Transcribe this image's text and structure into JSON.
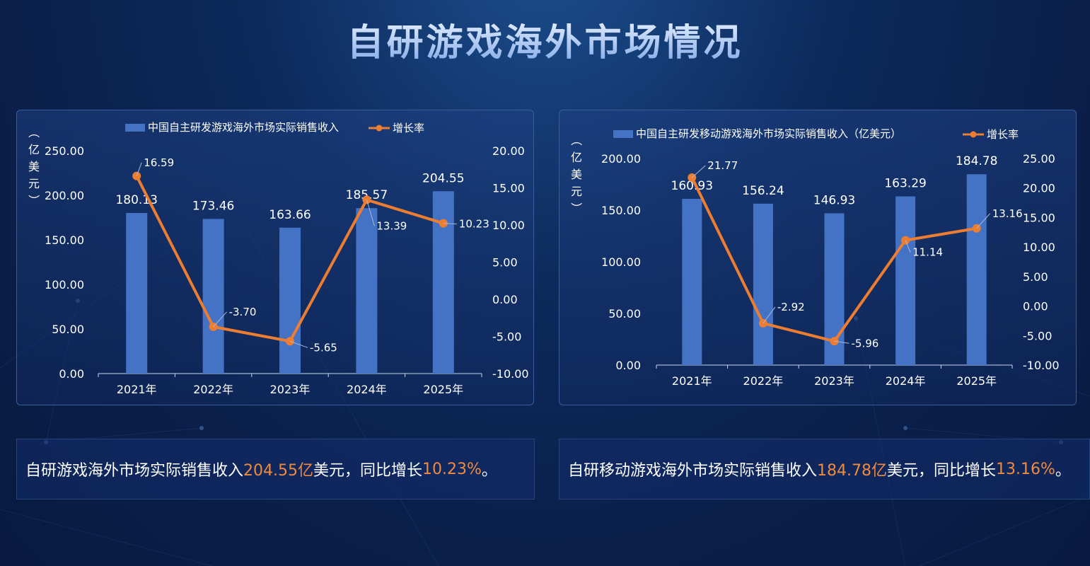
{
  "page": {
    "title": "自研游戏海外市场情况"
  },
  "colors": {
    "bar": "#4472c4",
    "line": "#ed7d31",
    "axis_text": "#ffffff",
    "highlight": "#f08a3c"
  },
  "chart_data": [
    {
      "type": "bar",
      "categories": [
        "2021年",
        "2022年",
        "2023年",
        "2024年",
        "2025年"
      ],
      "series": [
        {
          "name": "中国自主研发游戏海外市场实际销售收入",
          "type": "bar",
          "axis": "left",
          "values": [
            180.13,
            173.46,
            163.66,
            185.57,
            204.55
          ],
          "labels": [
            "180.13",
            "173.46",
            "163.66",
            "185.57",
            "204.55"
          ]
        },
        {
          "name": "增长率",
          "type": "line",
          "axis": "right",
          "values": [
            16.59,
            -3.7,
            -5.65,
            13.39,
            10.23
          ],
          "labels": [
            "16.59",
            "-3.70",
            "-5.65",
            "13.39",
            "10.23"
          ]
        }
      ],
      "ylabel": "（亿美元）",
      "ylim": [
        0,
        250
      ],
      "yticks": [
        "0.00",
        "50.00",
        "100.00",
        "150.00",
        "200.00",
        "250.00"
      ],
      "y2lim": [
        -10,
        20
      ],
      "y2ticks": [
        "-10.00",
        "-5.00",
        "0.00",
        "5.00",
        "10.00",
        "15.00",
        "20.00"
      ],
      "legend": "top",
      "grid": false
    },
    {
      "type": "bar",
      "categories": [
        "2021年",
        "2022年",
        "2023年",
        "2024年",
        "2025年"
      ],
      "series": [
        {
          "name": "中国自主研发移动游戏海外市场实际销售收入（亿美元）",
          "type": "bar",
          "axis": "left",
          "values": [
            160.93,
            156.24,
            146.93,
            163.29,
            184.78
          ],
          "labels": [
            "160.93",
            "156.24",
            "146.93",
            "163.29",
            "184.78"
          ]
        },
        {
          "name": "增长率",
          "type": "line",
          "axis": "right",
          "values": [
            21.77,
            -2.92,
            -5.96,
            11.14,
            13.16
          ],
          "labels": [
            "21.77",
            "-2.92",
            "-5.96",
            "11.14",
            "13.16"
          ]
        }
      ],
      "ylabel": "（亿美元）",
      "ylim": [
        0,
        200
      ],
      "yticks": [
        "0.00",
        "50.00",
        "100.00",
        "150.00",
        "200.00"
      ],
      "y2lim": [
        -10,
        25
      ],
      "y2ticks": [
        "-10.00",
        "-5.00",
        "0.00",
        "5.00",
        "10.00",
        "15.00",
        "20.00",
        "25.00"
      ],
      "legend": "top",
      "grid": false
    }
  ],
  "summaries": [
    {
      "pre": "自研游戏海外市场实际销售收入",
      "value": "204.55亿",
      "mid": "美元，同比增长",
      "rate": "10.23%",
      "post": " 。"
    },
    {
      "pre": "自研移动游戏海外市场实际销售收入",
      "value": "184.78亿",
      "mid": "美元，同比增长",
      "rate": "13.16%",
      "post": "。"
    }
  ]
}
